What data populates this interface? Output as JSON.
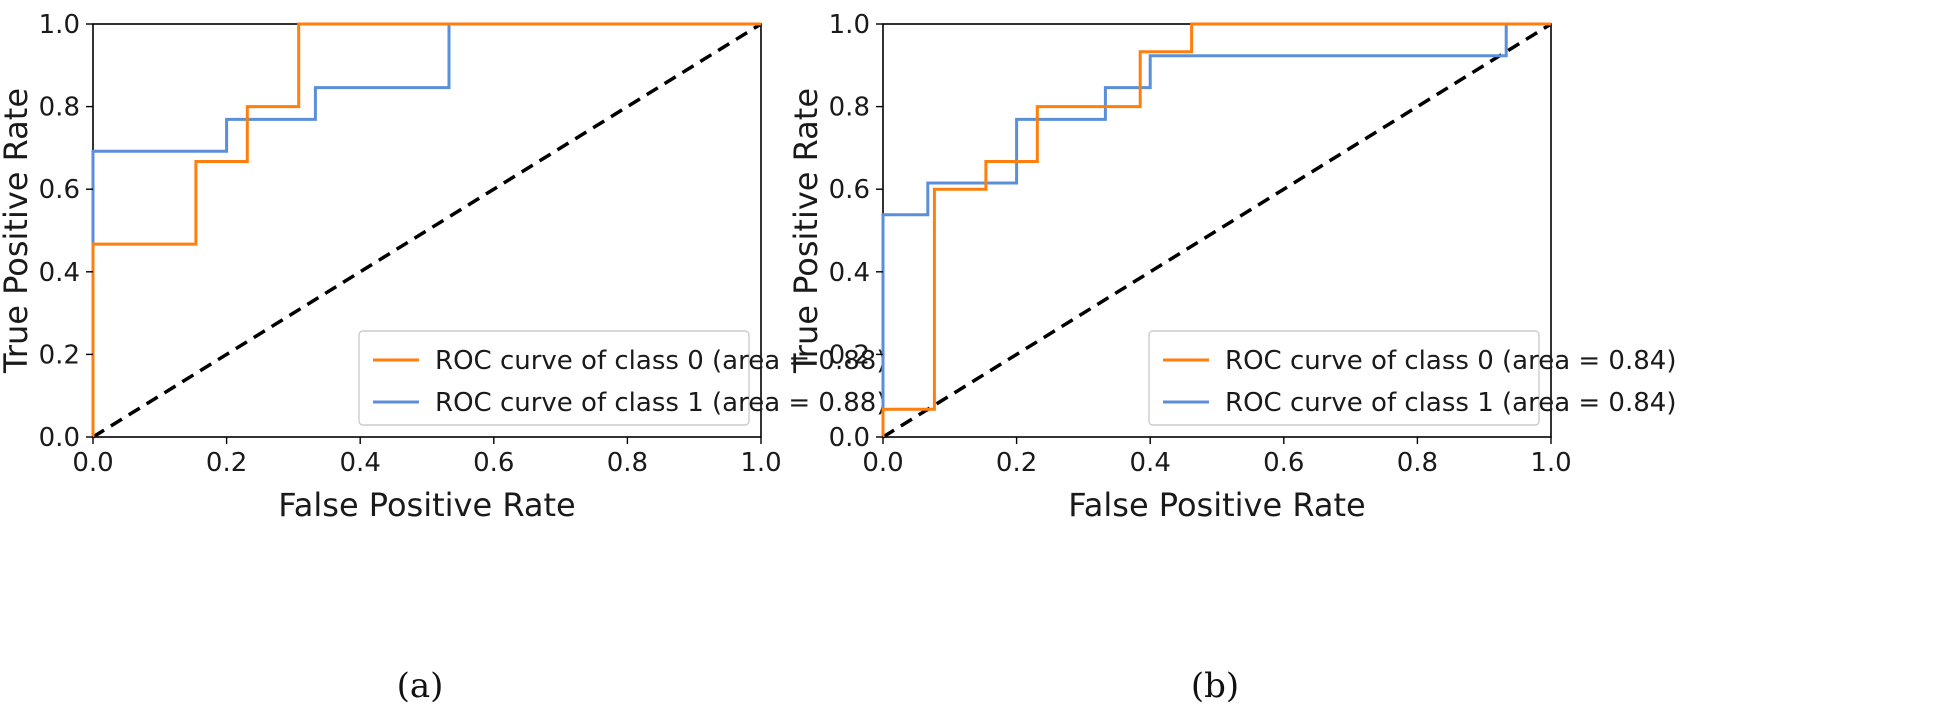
{
  "chart_data": [
    {
      "type": "line",
      "title": "",
      "caption": "(a)",
      "xlabel": "False Positive Rate",
      "ylabel": "True Positive Rate",
      "xlim": [
        0.0,
        1.0
      ],
      "ylim": [
        0.0,
        1.0
      ],
      "xticks": [
        "0.0",
        "0.2",
        "0.4",
        "0.6",
        "0.8",
        "1.0"
      ],
      "yticks": [
        "0.0",
        "0.2",
        "0.4",
        "0.6",
        "0.8",
        "1.0"
      ],
      "grid": false,
      "legend_position": "lower-right",
      "series": [
        {
          "name": "ROC curve of class 0 (area = 0.88)",
          "color": "#ff7f0e",
          "style": "solid",
          "x": [
            0.0,
            0.0,
            0.154,
            0.154,
            0.231,
            0.231,
            0.308,
            0.308,
            1.0
          ],
          "y": [
            0.0,
            0.467,
            0.467,
            0.667,
            0.667,
            0.8,
            0.8,
            1.0,
            1.0
          ]
        },
        {
          "name": "ROC curve of class 1 (area = 0.88)",
          "color": "#5b8fd9",
          "style": "solid",
          "x": [
            0.0,
            0.0,
            0.2,
            0.2,
            0.333,
            0.333,
            0.533,
            0.533,
            1.0
          ],
          "y": [
            0.0,
            0.692,
            0.692,
            0.769,
            0.769,
            0.846,
            0.846,
            1.0,
            1.0
          ]
        },
        {
          "name": "chance",
          "color": "#000000",
          "style": "dashed",
          "x": [
            0.0,
            1.0
          ],
          "y": [
            0.0,
            1.0
          ]
        }
      ]
    },
    {
      "type": "line",
      "title": "",
      "caption": "(b)",
      "xlabel": "False Positive Rate",
      "ylabel": "True Positive Rate",
      "xlim": [
        0.0,
        1.0
      ],
      "ylim": [
        0.0,
        1.0
      ],
      "xticks": [
        "0.0",
        "0.2",
        "0.4",
        "0.6",
        "0.8",
        "1.0"
      ],
      "yticks": [
        "0.0",
        "0.2",
        "0.4",
        "0.6",
        "0.8",
        "1.0"
      ],
      "grid": false,
      "legend_position": "lower-right",
      "series": [
        {
          "name": "ROC curve of class 0 (area = 0.84)",
          "color": "#ff7f0e",
          "style": "solid",
          "x": [
            0.0,
            0.0,
            0.077,
            0.077,
            0.154,
            0.154,
            0.231,
            0.231,
            0.385,
            0.385,
            0.462,
            0.462,
            1.0
          ],
          "y": [
            0.0,
            0.067,
            0.067,
            0.6,
            0.6,
            0.667,
            0.667,
            0.8,
            0.8,
            0.933,
            0.933,
            1.0,
            1.0
          ]
        },
        {
          "name": "ROC curve of class 1 (area = 0.84)",
          "color": "#5b8fd9",
          "style": "solid",
          "x": [
            0.0,
            0.0,
            0.067,
            0.067,
            0.2,
            0.2,
            0.333,
            0.333,
            0.4,
            0.4,
            0.933,
            0.933,
            1.0
          ],
          "y": [
            0.0,
            0.538,
            0.538,
            0.615,
            0.615,
            0.769,
            0.769,
            0.846,
            0.846,
            0.923,
            0.923,
            1.0,
            1.0
          ]
        },
        {
          "name": "chance",
          "color": "#000000",
          "style": "dashed",
          "x": [
            0.0,
            1.0
          ],
          "y": [
            0.0,
            1.0
          ]
        }
      ]
    }
  ]
}
